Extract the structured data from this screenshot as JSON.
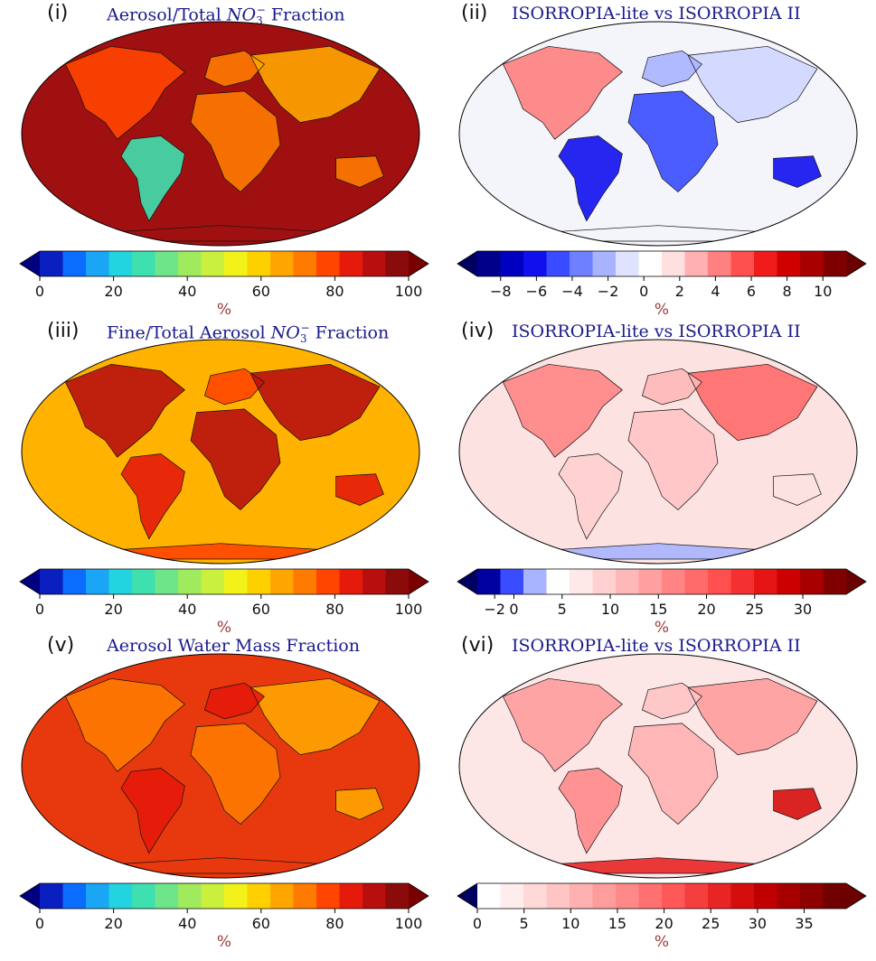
{
  "panels": [
    {
      "id": "i",
      "label": "(i)",
      "title_prefix": "Aerosol/Total ",
      "title_suffix": " Fraction",
      "title_species": "NO",
      "title_sub": "3",
      "title_sup": "−",
      "colormap": "jet",
      "base_color": "#a01010",
      "colorbar": {
        "ticks": [
          "0",
          "20",
          "40",
          "60",
          "80",
          "100"
        ],
        "tick_values": [
          0,
          20,
          40,
          60,
          80,
          100
        ],
        "min": 0,
        "max": 100,
        "unit": "%",
        "extend": "both",
        "colors": [
          "#0a1fbf",
          "#0a6dff",
          "#1aa6f5",
          "#22d3e0",
          "#3fe0b0",
          "#6fe58a",
          "#a0ea5e",
          "#c9f03c",
          "#f2f21a",
          "#ffd000",
          "#ffa500",
          "#ff7a00",
          "#ff4500",
          "#e61a0a",
          "#b80e0e",
          "#8b0a0a"
        ],
        "left_arrow": "#000080",
        "right_arrow": "#7a0000"
      }
    },
    {
      "id": "ii",
      "label": "(ii)",
      "title_prefix": "ISORROPIA-lite vs ISORROPIA II",
      "title_suffix": "",
      "title_species": "",
      "title_sub": "",
      "title_sup": "",
      "colormap": "seismic",
      "base_color": "#f4f4fb",
      "colorbar": {
        "ticks": [
          "−8",
          "−6",
          "−4",
          "−2",
          "0",
          "2",
          "4",
          "6",
          "8",
          "10"
        ],
        "tick_values": [
          -8,
          -6,
          -4,
          -2,
          0,
          2,
          4,
          6,
          8,
          10
        ],
        "min": -9.3,
        "max": 11.3,
        "unit": "%",
        "extend": "both",
        "colors": [
          "#00008b",
          "#0000c0",
          "#1010ee",
          "#3a4cff",
          "#6e80ff",
          "#a8b4ff",
          "#dfe3ff",
          "#ffffff",
          "#ffe0e0",
          "#ffb0b0",
          "#ff8080",
          "#ff4f4f",
          "#f01c1c",
          "#d00000",
          "#a80000",
          "#800000"
        ],
        "left_arrow": "#000060",
        "right_arrow": "#6a0000"
      }
    },
    {
      "id": "iii",
      "label": "(iii)",
      "title_prefix": "Fine/Total Aerosol ",
      "title_suffix": " Fraction",
      "title_species": "NO",
      "title_sub": "3",
      "title_sup": "−",
      "colormap": "jet",
      "base_color": "#ffb300",
      "colorbar": {
        "ticks": [
          "0",
          "20",
          "40",
          "60",
          "80",
          "100"
        ],
        "tick_values": [
          0,
          20,
          40,
          60,
          80,
          100
        ],
        "min": 0,
        "max": 100,
        "unit": "%",
        "extend": "both",
        "colors": [
          "#0a1fbf",
          "#0a6dff",
          "#1aa6f5",
          "#22d3e0",
          "#3fe0b0",
          "#6fe58a",
          "#a0ea5e",
          "#c9f03c",
          "#f2f21a",
          "#ffd000",
          "#ffa500",
          "#ff7a00",
          "#ff4500",
          "#e61a0a",
          "#b80e0e",
          "#8b0a0a"
        ],
        "left_arrow": "#000080",
        "right_arrow": "#7a0000"
      }
    },
    {
      "id": "iv",
      "label": "(iv)",
      "title_prefix": "ISORROPIA-lite vs ISORROPIA II",
      "title_suffix": "",
      "title_species": "",
      "title_sub": "",
      "title_sup": "",
      "colormap": "seismic",
      "base_color": "#fde2e2",
      "colorbar": {
        "ticks": [
          "−2",
          "0",
          "5",
          "10",
          "15",
          "20",
          "25",
          "30"
        ],
        "tick_values": [
          -2,
          0,
          5,
          10,
          15,
          20,
          25,
          30
        ],
        "min": -3.8,
        "max": 34.5,
        "unit": "%",
        "extend": "both",
        "colors": [
          "#0000a0",
          "#3a4cff",
          "#a8b4ff",
          "#ffffff",
          "#ffe8e8",
          "#ffd0d0",
          "#ffb8b8",
          "#ffa0a0",
          "#ff8585",
          "#ff6a6a",
          "#ff4f4f",
          "#f53030",
          "#e51515",
          "#cc0000",
          "#a80000",
          "#800000"
        ],
        "left_arrow": "#000060",
        "right_arrow": "#6a0000"
      }
    },
    {
      "id": "v",
      "label": "(v)",
      "title_prefix": "Aerosol Water Mass Fraction",
      "title_suffix": "",
      "title_species": "",
      "title_sub": "",
      "title_sup": "",
      "colormap": "jet",
      "base_color": "#e8380e",
      "colorbar": {
        "ticks": [
          "0",
          "20",
          "40",
          "60",
          "80",
          "100"
        ],
        "tick_values": [
          0,
          20,
          40,
          60,
          80,
          100
        ],
        "min": 0,
        "max": 100,
        "unit": "%",
        "extend": "both",
        "colors": [
          "#0a1fbf",
          "#0a6dff",
          "#1aa6f5",
          "#22d3e0",
          "#3fe0b0",
          "#6fe58a",
          "#a0ea5e",
          "#c9f03c",
          "#f2f21a",
          "#ffd000",
          "#ffa500",
          "#ff7a00",
          "#ff4500",
          "#e61a0a",
          "#b80e0e",
          "#8b0a0a"
        ],
        "left_arrow": "#000080",
        "right_arrow": "#7a0000"
      }
    },
    {
      "id": "vi",
      "label": "(vi)",
      "title_prefix": "ISORROPIA-lite vs ISORROPIA II",
      "title_suffix": "",
      "title_species": "",
      "title_sub": "",
      "title_sup": "",
      "colormap": "seismic",
      "base_color": "#fde6e6",
      "colorbar": {
        "ticks": [
          "0",
          "5",
          "10",
          "15",
          "20",
          "25",
          "30",
          "35"
        ],
        "tick_values": [
          0,
          5,
          10,
          15,
          20,
          25,
          30,
          35
        ],
        "min": 0,
        "max": 39.5,
        "unit": "%",
        "extend": "both",
        "colors": [
          "#ffffff",
          "#ffecec",
          "#ffd8d8",
          "#ffc4c4",
          "#ffb0b0",
          "#ff9c9c",
          "#ff8888",
          "#ff7070",
          "#ff5858",
          "#f53e3e",
          "#e82424",
          "#d60d0d",
          "#c00000",
          "#a60000",
          "#8c0000",
          "#700000"
        ],
        "left_arrow": "#000060",
        "right_arrow": "#6a0000"
      }
    }
  ]
}
